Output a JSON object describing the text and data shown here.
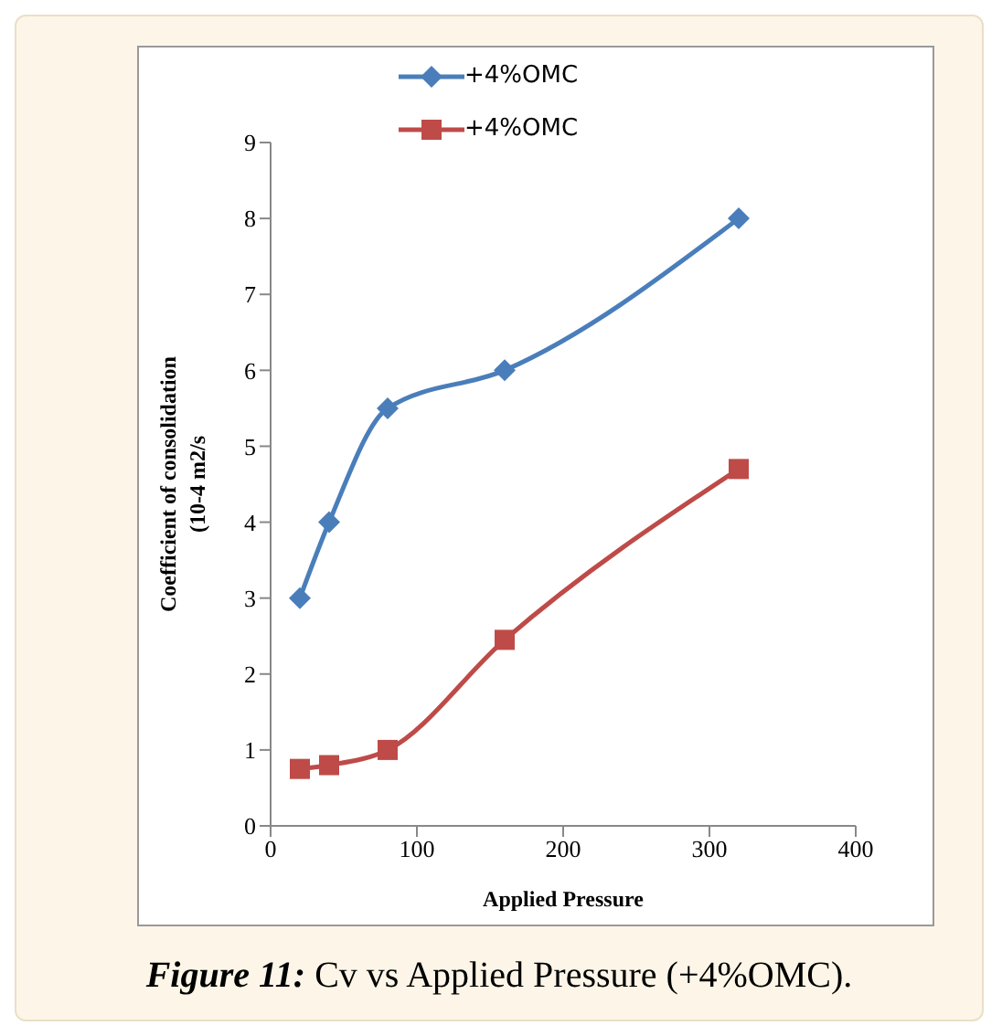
{
  "chart_data": {
    "type": "line",
    "xlabel": "Applied Pressure",
    "ylabel": "Coefficient of consolidation\n(10-4 m2/s",
    "annotations": [
      "Figure 11:",
      "Cv vs Applied Pressure (+4%OMC)."
    ],
    "x": [
      20,
      40,
      80,
      160,
      320
    ],
    "series": [
      {
        "name": "+4%OMC",
        "color": "#4a7ebb",
        "marker": "diamond",
        "values": [
          3,
          4,
          5.5,
          6,
          8
        ]
      },
      {
        "name": "+4%OMC",
        "color": "#be4b48",
        "marker": "square",
        "values": [
          0.75,
          0.8,
          1.0,
          2.45,
          4.7
        ]
      }
    ],
    "xlim": [
      0,
      400
    ],
    "xticks": [
      0,
      100,
      200,
      300,
      400
    ],
    "ylim": [
      0,
      9
    ],
    "yticks": [
      0,
      1,
      2,
      3,
      4,
      5,
      6,
      7,
      8,
      9
    ],
    "grid": false,
    "legend": "top"
  }
}
